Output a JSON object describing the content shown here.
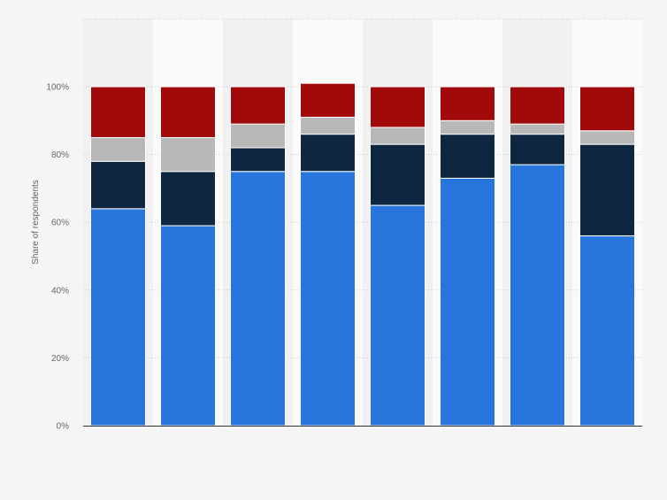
{
  "chart_data": {
    "type": "bar",
    "stacked": true,
    "categories": [
      "",
      "",
      "",
      "",
      "",
      "",
      "",
      ""
    ],
    "series": [
      {
        "color": "#2876dd",
        "values": [
          64,
          59,
          75,
          75,
          65,
          73,
          77,
          56
        ]
      },
      {
        "color": "#0f2640",
        "values": [
          14,
          16,
          7,
          11,
          18,
          13,
          9,
          27
        ]
      },
      {
        "color": "#b8b8b8",
        "values": [
          7,
          10,
          7,
          5,
          5,
          4,
          3,
          4
        ]
      },
      {
        "color": "#a10a0a",
        "values": [
          15,
          15,
          11,
          10,
          12,
          10,
          11,
          13
        ]
      }
    ],
    "title": "",
    "xlabel": "",
    "ylabel": "Share of respondents",
    "ylim": [
      0,
      120
    ],
    "yticks": [
      {
        "value": 0,
        "label": "0%"
      },
      {
        "value": 20,
        "label": "20%"
      },
      {
        "value": 40,
        "label": "40%"
      },
      {
        "value": 60,
        "label": "60%"
      },
      {
        "value": 80,
        "label": "80%"
      },
      {
        "value": 100,
        "label": "100%"
      }
    ],
    "grid": true,
    "legend": "none"
  }
}
